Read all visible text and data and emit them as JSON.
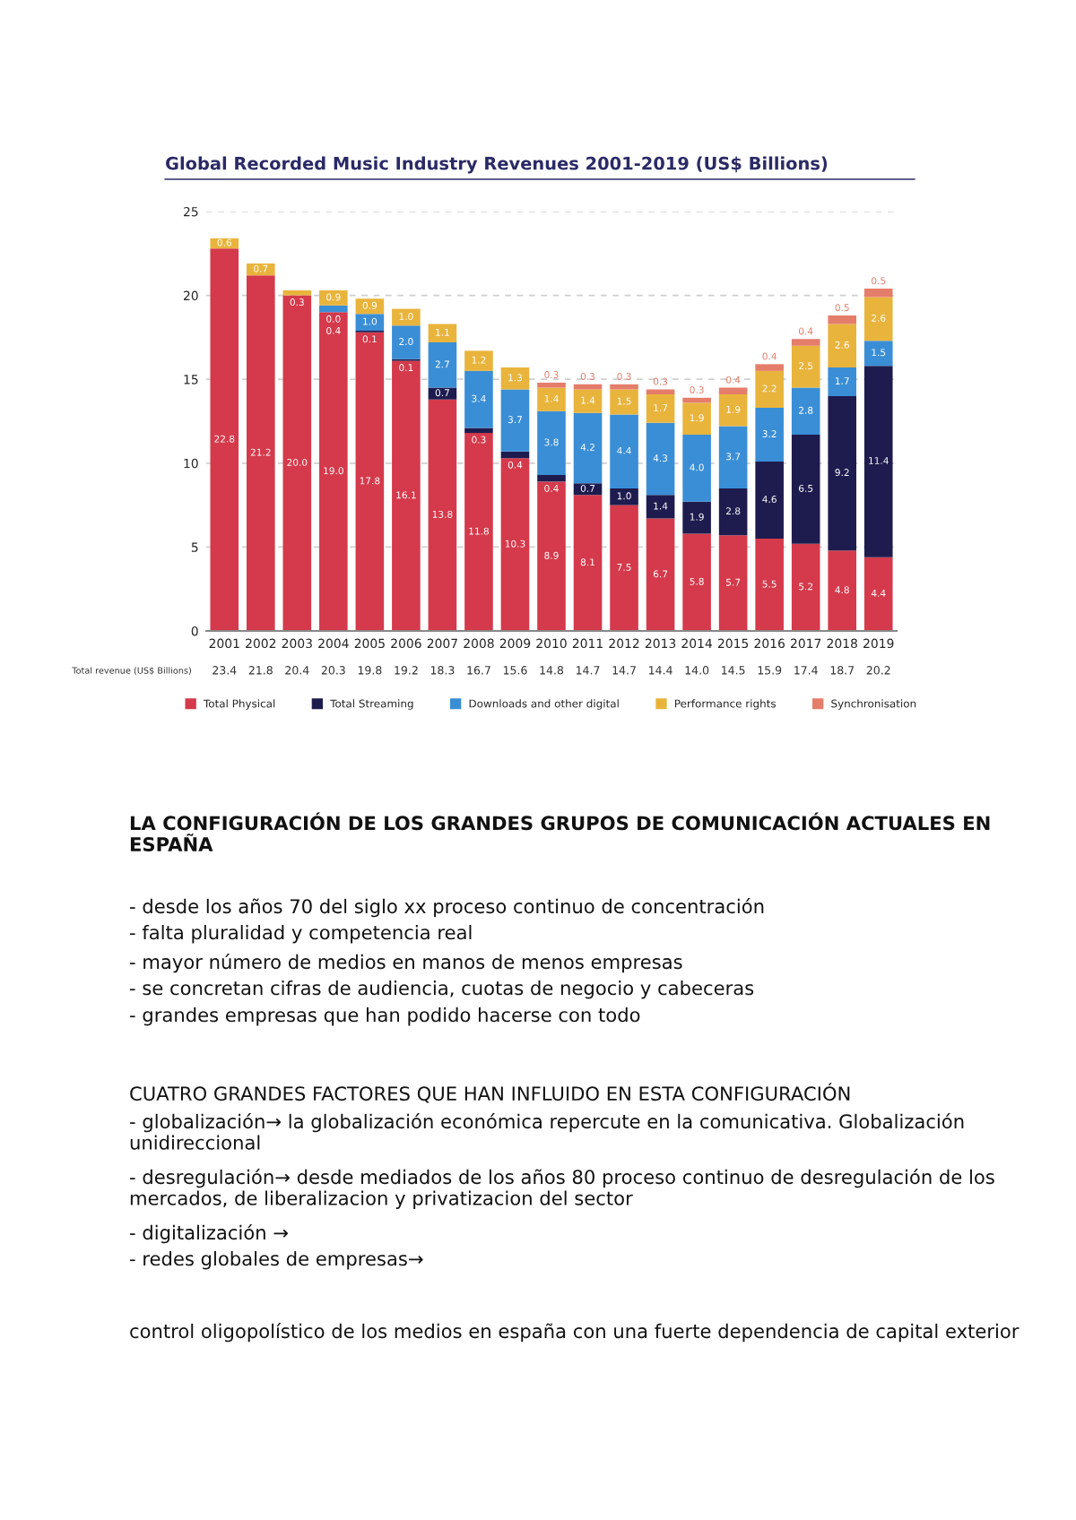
{
  "chart_data": {
    "type": "bar",
    "stacked": true,
    "title": "Global Recorded Music Industry Revenues 2001-2019 (US$ Billions)",
    "categories": [
      "2001",
      "2002",
      "2003",
      "2004",
      "2005",
      "2006",
      "2007",
      "2008",
      "2009",
      "2010",
      "2011",
      "2012",
      "2013",
      "2014",
      "2015",
      "2016",
      "2017",
      "2018",
      "2019"
    ],
    "series": [
      {
        "name": "Total Physical",
        "color": "#d43a4b",
        "values": [
          22.8,
          21.2,
          20.0,
          19.0,
          17.8,
          16.1,
          13.8,
          11.8,
          10.3,
          8.9,
          8.1,
          7.5,
          6.7,
          5.8,
          5.7,
          5.5,
          5.2,
          4.8,
          4.4
        ],
        "value_labels": [
          "22.8",
          "21.2",
          "20.0",
          "19.0",
          "17.8",
          "16.1",
          "13.8",
          "11.8",
          "10.3",
          "8.9",
          "8.1",
          "7.5",
          "6.7",
          "5.8",
          "5.7",
          "5.5",
          "5.2",
          "4.8",
          "4.4"
        ]
      },
      {
        "name": "Total Streaming",
        "color": "#1e1c4e",
        "values": [
          null,
          null,
          null,
          0.0,
          0.1,
          0.1,
          0.7,
          0.3,
          0.4,
          0.4,
          0.7,
          1.0,
          1.4,
          1.9,
          2.8,
          4.6,
          6.5,
          9.2,
          11.4
        ],
        "value_labels": [
          null,
          null,
          null,
          "0.0",
          "0.1",
          "0.1",
          "0.7",
          "0.3",
          "0.4",
          "0.4",
          "0.7",
          "1.0",
          "1.4",
          "1.9",
          "2.8",
          "4.6",
          "6.5",
          "9.2",
          "11.4"
        ]
      },
      {
        "name": "Downloads and other digital",
        "color": "#3a8ed6",
        "values": [
          null,
          null,
          null,
          0.4,
          1.0,
          2.0,
          2.7,
          3.4,
          3.7,
          3.8,
          4.2,
          4.4,
          4.3,
          4.0,
          3.7,
          3.2,
          2.8,
          1.7,
          1.5
        ],
        "value_labels": [
          null,
          null,
          null,
          "0.4",
          "1.0",
          "2.0",
          "2.7",
          "3.4",
          "3.7",
          "3.8",
          "4.2",
          "4.4",
          "4.3",
          "4.0",
          "3.7",
          "3.2",
          "2.8",
          "1.7",
          "1.5"
        ]
      },
      {
        "name": "Performance rights",
        "color": "#e9b43c",
        "values": [
          0.6,
          0.7,
          0.3,
          0.9,
          0.9,
          1.0,
          1.1,
          1.2,
          1.3,
          1.4,
          1.4,
          1.5,
          1.7,
          1.9,
          1.9,
          2.2,
          2.5,
          2.6,
          2.6
        ],
        "value_labels": [
          "0.6",
          "0.7",
          "0.3",
          "0.9",
          "0.9",
          "1.0",
          "1.1",
          "1.2",
          "1.3",
          "1.4",
          "1.4",
          "1.5",
          "1.7",
          "1.9",
          "1.9",
          "2.2",
          "2.5",
          "2.6",
          "2.6"
        ]
      },
      {
        "name": "Synchronisation",
        "color": "#e57d6b",
        "values": [
          null,
          null,
          null,
          null,
          null,
          null,
          null,
          null,
          null,
          0.3,
          0.3,
          0.3,
          0.3,
          0.3,
          0.4,
          0.4,
          0.4,
          0.5,
          0.5
        ],
        "value_labels": [
          null,
          null,
          null,
          null,
          null,
          null,
          null,
          null,
          null,
          "0.3",
          "0.3",
          "0.3",
          "0.3",
          "0.3",
          "0.4",
          "0.4",
          "0.4",
          "0.5",
          "0.5"
        ]
      }
    ],
    "totals": [
      "23.4",
      "21.8",
      "20.4",
      "20.3",
      "19.8",
      "19.2",
      "18.3",
      "16.7",
      "15.6",
      "14.8",
      "14.7",
      "14.7",
      "14.4",
      "14.0",
      "14.5",
      "15.9",
      "17.4",
      "18.7",
      "20.2"
    ],
    "ylim": [
      0,
      25
    ],
    "yticks": [
      0,
      5,
      10,
      15,
      20,
      25
    ],
    "grid": "y",
    "legend": "bottom",
    "annotations": [
      "Total revenue (US$ Billions)",
      "LA CONFIGURACIÓN DE LOS GRANDES GRUPOS DE COMUNICACIÓN ACTUALES EN ESPAÑA",
      "- desde los años 70 del siglo xx proceso continuo de concentración",
      "- falta pluralidad y competencia real",
      "- mayor número de medios en manos de menos empresas",
      "- se concretan cifras de audiencia, cuotas de negocio y cabeceras",
      "- grandes empresas que han podido hacerse con todo",
      "CUATRO GRANDES FACTORES QUE HAN INFLUIDO EN ESTA CONFIGURACIÓN",
      "- globalización→ la globalización económica repercute en la comunicativa. Globalización unidireccional",
      "- desregulación→ desde mediados de los años 80 proceso continuo de desregulación de los mercados, de liberalizacion y privatizacion del sector",
      "- digitalización →",
      "- redes globales de empresas→",
      "control oligopolístico de los medios en españa con una fuerte dependencia de capital exterior"
    ]
  }
}
